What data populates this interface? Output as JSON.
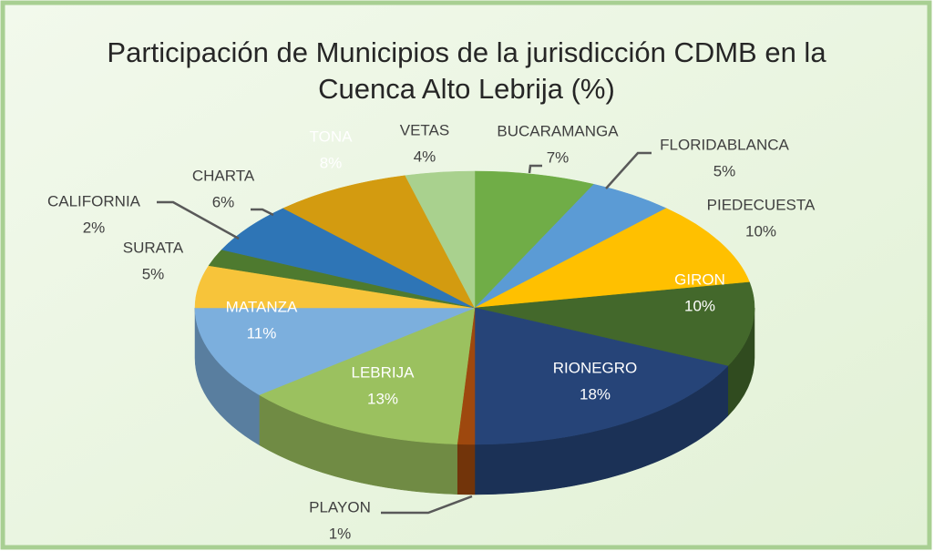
{
  "chart_data": {
    "type": "pie3d",
    "title": "Participación de Municipios de la jurisdicción CDMB en la Cuenca Alto Lebrija (%)",
    "categories": [
      "BUCARAMANGA",
      "FLORIDABLANCA",
      "PIEDECUESTA",
      "GIRON",
      "RIONEGRO",
      "PLAYON",
      "LEBRIJA",
      "MATANZA",
      "SURATA",
      "CALIFORNIA",
      "CHARTA",
      "TONA",
      "VETAS"
    ],
    "values": [
      7,
      5,
      10,
      10,
      18,
      1,
      13,
      11,
      5,
      2,
      6,
      8,
      4
    ],
    "value_labels": [
      "7%",
      "5%",
      "10%",
      "10%",
      "18%",
      "1%",
      "13%",
      "11%",
      "5%",
      "2%",
      "6%",
      "8%",
      "4%"
    ],
    "colors": [
      "#70ad47",
      "#5b9bd5",
      "#ffc000",
      "#43682b",
      "#264478",
      "#9e480e",
      "#9bc15f",
      "#7cafdd",
      "#f7c43a",
      "#4e7a2f",
      "#2e75b6",
      "#d39b10",
      "#a9d18e"
    ]
  }
}
